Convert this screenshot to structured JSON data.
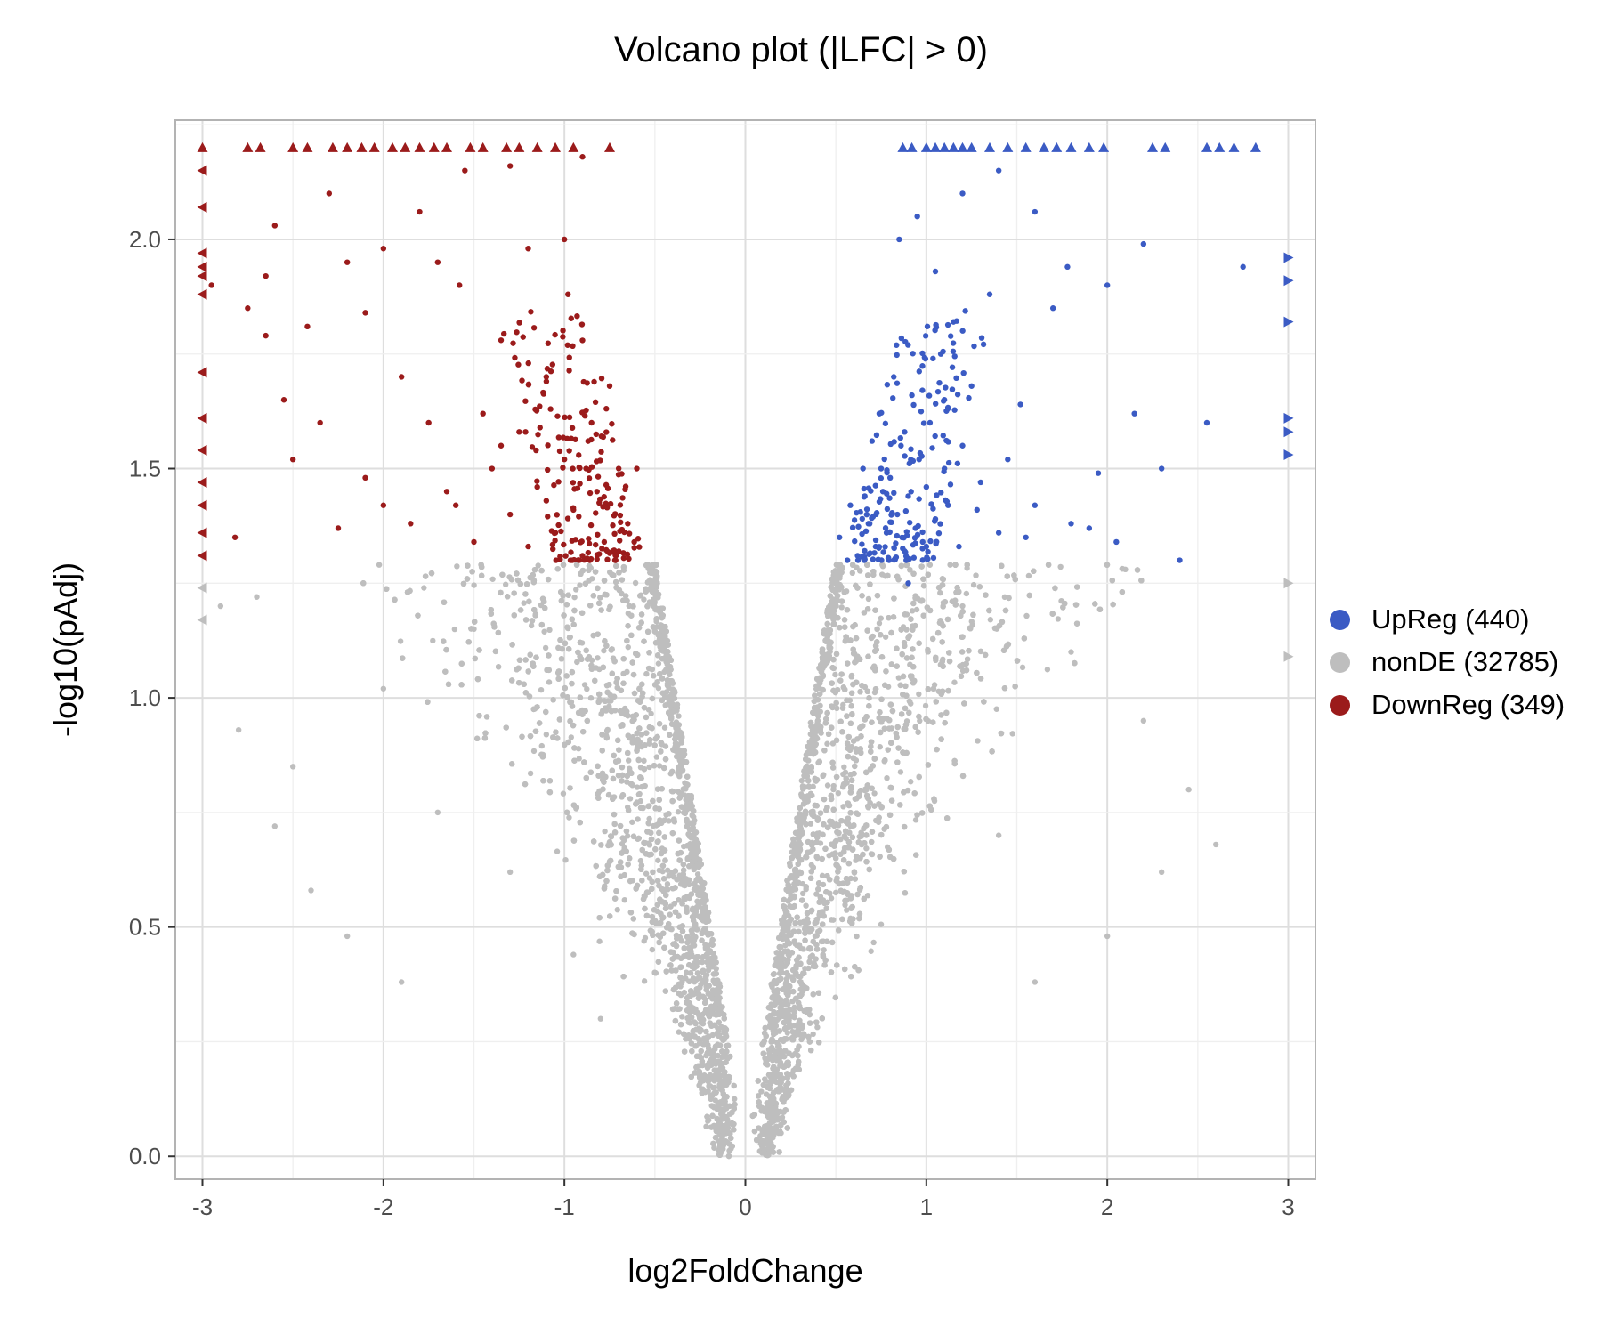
{
  "chart_data": {
    "type": "scatter",
    "title": "Volcano plot (|LFC| > 0)",
    "xlabel": "log2FoldChange",
    "ylabel": "-log10(pAdj)",
    "xlim": [
      -3.15,
      3.15
    ],
    "ylim": [
      -0.05,
      2.26
    ],
    "x_ticks": [
      "-3",
      "-2",
      "-1",
      "0",
      "1",
      "2",
      "3"
    ],
    "y_ticks": [
      "0.0",
      "0.5",
      "1.0",
      "1.5",
      "2.0"
    ],
    "grid": true,
    "legend_position": "right",
    "series": [
      {
        "name": "UpReg (440)",
        "color": "#3B5BC4",
        "points": [
          [
            0.52,
            1.35
          ],
          [
            0.58,
            1.42
          ],
          [
            0.62,
            1.31
          ],
          [
            0.65,
            1.5
          ],
          [
            0.68,
            1.38
          ],
          [
            0.7,
            1.56
          ],
          [
            0.72,
            1.33
          ],
          [
            0.74,
            1.62
          ],
          [
            0.76,
            1.45
          ],
          [
            0.78,
            1.36
          ],
          [
            0.8,
            1.48
          ],
          [
            0.82,
            1.7
          ],
          [
            0.84,
            1.4
          ],
          [
            0.86,
            1.55
          ],
          [
            0.88,
            1.32
          ],
          [
            0.9,
            1.44
          ],
          [
            0.92,
            1.66
          ],
          [
            0.94,
            1.37
          ],
          [
            0.96,
            1.52
          ],
          [
            0.98,
            1.34
          ],
          [
            1.0,
            1.46
          ],
          [
            1.02,
            1.6
          ],
          [
            1.05,
            1.39
          ],
          [
            1.08,
            1.75
          ],
          [
            1.1,
            1.5
          ],
          [
            1.12,
            1.42
          ],
          [
            1.15,
            1.82
          ],
          [
            1.18,
            1.33
          ],
          [
            1.2,
            1.55
          ],
          [
            1.25,
            1.68
          ],
          [
            1.3,
            1.47
          ],
          [
            1.35,
            1.88
          ],
          [
            1.4,
            1.36
          ],
          [
            1.45,
            1.52
          ],
          [
            1.52,
            1.64
          ],
          [
            1.6,
            1.42
          ],
          [
            1.7,
            1.85
          ],
          [
            1.8,
            1.38
          ],
          [
            1.95,
            1.49
          ],
          [
            2.05,
            1.34
          ],
          [
            2.15,
            1.62
          ],
          [
            2.3,
            1.5
          ],
          [
            2.4,
            1.3
          ],
          [
            2.55,
            1.6
          ],
          [
            0.85,
            2.0
          ],
          [
            0.95,
            2.05
          ],
          [
            1.05,
            1.93
          ],
          [
            1.2,
            2.1
          ],
          [
            1.4,
            2.15
          ],
          [
            1.6,
            2.06
          ],
          [
            1.78,
            1.94
          ],
          [
            2.0,
            1.9
          ],
          [
            2.2,
            1.99
          ],
          [
            2.75,
            1.94
          ],
          [
            0.9,
            1.25
          ],
          [
            0.75,
            1.5
          ],
          [
            0.66,
            1.44
          ],
          [
            0.88,
            1.58
          ],
          [
            1.0,
            1.33
          ],
          [
            1.28,
            1.41
          ],
          [
            1.55,
            1.35
          ],
          [
            1.9,
            1.37
          ]
        ],
        "edge_points": [
          [
            0.87,
            2.2
          ],
          [
            0.92,
            2.2
          ],
          [
            1.0,
            2.2
          ],
          [
            1.05,
            2.2
          ],
          [
            1.1,
            2.2
          ],
          [
            1.15,
            2.2
          ],
          [
            1.2,
            2.2
          ],
          [
            1.25,
            2.2
          ],
          [
            1.35,
            2.2
          ],
          [
            1.45,
            2.2
          ],
          [
            1.55,
            2.2
          ],
          [
            1.65,
            2.2
          ],
          [
            1.72,
            2.2
          ],
          [
            1.8,
            2.2
          ],
          [
            1.9,
            2.2
          ],
          [
            1.98,
            2.2
          ],
          [
            2.25,
            2.2
          ],
          [
            2.32,
            2.2
          ],
          [
            2.55,
            2.2
          ],
          [
            2.62,
            2.2
          ],
          [
            2.7,
            2.2
          ],
          [
            2.82,
            2.2
          ],
          [
            3.0,
            1.96
          ],
          [
            3.0,
            1.91
          ],
          [
            3.0,
            1.82
          ],
          [
            3.0,
            1.61
          ],
          [
            3.0,
            1.58
          ],
          [
            3.0,
            1.53
          ]
        ]
      },
      {
        "name": "nonDE (32785)",
        "color": "#BEBEBE",
        "points": [
          [
            -2.8,
            0.93
          ],
          [
            -2.7,
            1.22
          ],
          [
            -2.5,
            0.85
          ],
          [
            -2.4,
            0.58
          ],
          [
            -2.2,
            0.48
          ],
          [
            -2.0,
            1.02
          ],
          [
            -1.9,
            0.38
          ],
          [
            -1.7,
            0.75
          ],
          [
            -1.5,
            1.15
          ],
          [
            -1.3,
            0.62
          ],
          [
            -1.1,
            0.92
          ],
          [
            -0.95,
            0.44
          ],
          [
            -0.8,
            0.3
          ],
          [
            2.2,
            0.95
          ],
          [
            2.3,
            0.62
          ],
          [
            2.45,
            0.8
          ],
          [
            2.6,
            0.68
          ],
          [
            2.0,
            0.48
          ],
          [
            1.8,
            1.1
          ],
          [
            1.6,
            0.38
          ],
          [
            1.4,
            0.7
          ],
          [
            1.2,
            1.2
          ],
          [
            2.1,
            1.28
          ],
          [
            -2.9,
            1.2
          ],
          [
            -2.6,
            0.72
          ]
        ],
        "edge_points": [
          [
            -3.0,
            1.24
          ],
          [
            -3.0,
            1.17
          ],
          [
            3.0,
            1.25
          ],
          [
            3.0,
            1.09
          ]
        ],
        "envelope_note": "dense V-shaped cloud"
      },
      {
        "name": "DownReg (349)",
        "color": "#9B1B1B",
        "points": [
          [
            -2.95,
            1.9
          ],
          [
            -2.82,
            1.35
          ],
          [
            -2.75,
            1.85
          ],
          [
            -2.65,
            1.79
          ],
          [
            -2.55,
            1.65
          ],
          [
            -2.5,
            1.52
          ],
          [
            -2.42,
            1.81
          ],
          [
            -2.35,
            1.6
          ],
          [
            -2.25,
            1.37
          ],
          [
            -2.2,
            1.95
          ],
          [
            -2.1,
            1.48
          ],
          [
            -2.0,
            1.42
          ],
          [
            -1.9,
            1.7
          ],
          [
            -1.85,
            1.38
          ],
          [
            -1.75,
            1.6
          ],
          [
            -1.65,
            1.45
          ],
          [
            -1.58,
            1.9
          ],
          [
            -1.5,
            1.34
          ],
          [
            -1.45,
            1.62
          ],
          [
            -1.4,
            1.5
          ],
          [
            -1.35,
            1.78
          ],
          [
            -1.3,
            1.4
          ],
          [
            -1.25,
            1.58
          ],
          [
            -1.2,
            1.33
          ],
          [
            -1.15,
            1.46
          ],
          [
            -1.1,
            1.7
          ],
          [
            -1.05,
            1.36
          ],
          [
            -1.0,
            1.52
          ],
          [
            -0.98,
            1.88
          ],
          [
            -0.95,
            1.41
          ],
          [
            -0.9,
            1.31
          ],
          [
            -0.85,
            1.6
          ],
          [
            -0.82,
            1.45
          ],
          [
            -0.78,
            1.34
          ],
          [
            -0.75,
            1.68
          ],
          [
            -0.7,
            1.5
          ],
          [
            -0.65,
            1.38
          ],
          [
            -0.6,
            1.5
          ],
          [
            -2.6,
            2.03
          ],
          [
            -2.3,
            2.1
          ],
          [
            -2.0,
            1.98
          ],
          [
            -1.8,
            2.06
          ],
          [
            -1.55,
            2.15
          ],
          [
            -1.2,
            1.98
          ],
          [
            -1.0,
            2.0
          ],
          [
            -1.7,
            1.95
          ],
          [
            -2.1,
            1.84
          ],
          [
            -2.65,
            1.92
          ],
          [
            -1.3,
            2.16
          ],
          [
            -0.9,
            2.18
          ],
          [
            -1.6,
            1.42
          ],
          [
            -1.35,
            1.55
          ],
          [
            -1.1,
            1.43
          ],
          [
            -0.88,
            1.5
          ]
        ],
        "edge_points": [
          [
            -3.0,
            2.2
          ],
          [
            -2.75,
            2.2
          ],
          [
            -2.68,
            2.2
          ],
          [
            -2.5,
            2.2
          ],
          [
            -2.42,
            2.2
          ],
          [
            -2.28,
            2.2
          ],
          [
            -2.2,
            2.2
          ],
          [
            -2.12,
            2.2
          ],
          [
            -2.05,
            2.2
          ],
          [
            -1.95,
            2.2
          ],
          [
            -1.88,
            2.2
          ],
          [
            -1.8,
            2.2
          ],
          [
            -1.72,
            2.2
          ],
          [
            -1.65,
            2.2
          ],
          [
            -1.52,
            2.2
          ],
          [
            -1.45,
            2.2
          ],
          [
            -1.32,
            2.2
          ],
          [
            -1.25,
            2.2
          ],
          [
            -1.15,
            2.2
          ],
          [
            -1.05,
            2.2
          ],
          [
            -0.95,
            2.2
          ],
          [
            -0.75,
            2.2
          ],
          [
            -3.0,
            2.15
          ],
          [
            -3.0,
            2.07
          ],
          [
            -3.0,
            1.97
          ],
          [
            -3.0,
            1.94
          ],
          [
            -3.0,
            1.92
          ],
          [
            -3.0,
            1.88
          ],
          [
            -3.0,
            1.71
          ],
          [
            -3.0,
            1.61
          ],
          [
            -3.0,
            1.54
          ],
          [
            -3.0,
            1.47
          ],
          [
            -3.0,
            1.42
          ],
          [
            -3.0,
            1.36
          ],
          [
            -3.0,
            1.31
          ]
        ]
      }
    ]
  }
}
